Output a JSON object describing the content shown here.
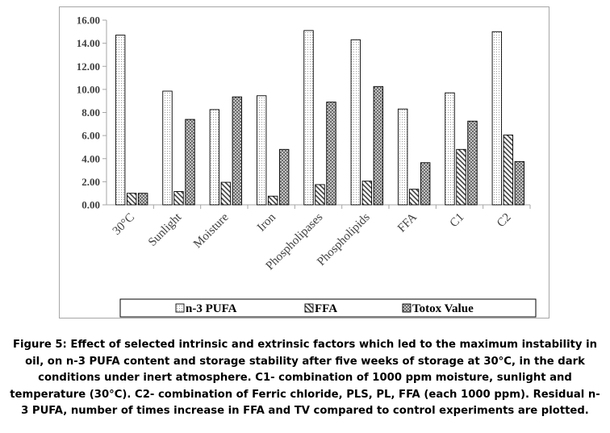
{
  "chart_data": {
    "type": "bar",
    "categories": [
      "30°C",
      "Sunlight",
      "Moisture",
      "Iron",
      "Phospholipases",
      "Phospholipids",
      "FFA",
      "C1",
      "C2"
    ],
    "series": [
      {
        "name": "n-3 PUFA",
        "pattern": "dotted",
        "values": [
          14.7,
          9.85,
          8.25,
          9.45,
          15.1,
          14.3,
          8.3,
          9.7,
          15.0
        ]
      },
      {
        "name": "FFA",
        "pattern": "hatched",
        "values": [
          1.0,
          1.15,
          1.95,
          0.75,
          1.75,
          2.05,
          1.35,
          4.8,
          6.05
        ]
      },
      {
        "name": "Totox Value",
        "pattern": "crosshatch",
        "values": [
          1.0,
          7.4,
          9.35,
          4.8,
          8.9,
          10.25,
          3.65,
          7.25,
          3.75
        ]
      }
    ],
    "yticks": [
      "0.00",
      "2.00",
      "4.00",
      "6.00",
      "8.00",
      "10.00",
      "12.00",
      "14.00",
      "16.00"
    ],
    "ylim": [
      0,
      16
    ],
    "grid": false,
    "legend_position": "bottom"
  },
  "caption": {
    "text": "Figure 5: Effect of selected intrinsic and extrinsic factors which led to the maximum instability in oil, on n-3 PUFA content and storage stability after five weeks of storage at 30°C, in the dark conditions under inert atmosphere. C1- combination of 1000 ppm moisture, sunlight and temperature (30°C). C2- combination of Ferric chloride, PLS, PL, FFA (each 1000 ppm). Residual n-3 PUFA, number of times increase in FFA and TV compared to control experiments are plotted."
  }
}
